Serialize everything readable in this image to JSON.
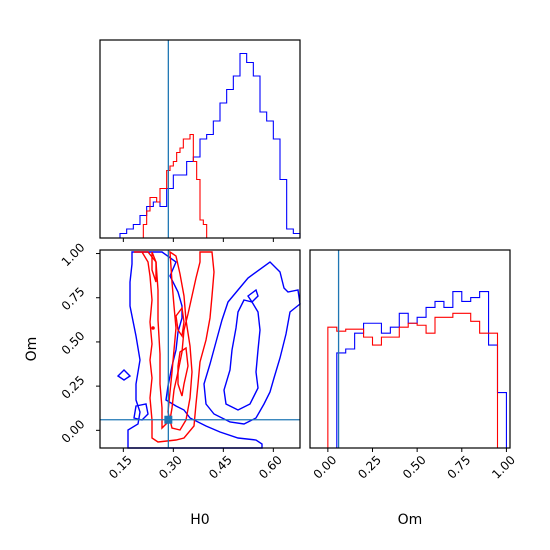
{
  "chart_data": {
    "type": "corner",
    "parameters": [
      "H0",
      "Om"
    ],
    "truths": {
      "H0": 0.285,
      "Om": 0.06
    },
    "series": [
      {
        "color": "#0000ff"
      },
      {
        "color": "#ff0000"
      }
    ],
    "truth_color": "#1f77b4",
    "panels": [
      {
        "id": "h0-marginal",
        "type": "step-histogram",
        "xlim": [
          0.08,
          0.68
        ],
        "bin_edges": [
          0.08,
          0.1,
          0.12,
          0.14,
          0.16,
          0.18,
          0.2,
          0.22,
          0.24,
          0.26,
          0.28,
          0.3,
          0.32,
          0.34,
          0.36,
          0.38,
          0.4,
          0.42,
          0.44,
          0.46,
          0.48,
          0.5,
          0.52,
          0.54,
          0.56,
          0.58,
          0.6,
          0.62,
          0.64,
          0.66,
          0.68
        ],
        "series": [
          {
            "color": "#0000ff",
            "counts": [
              0,
              0,
              0,
              0.5,
              1.0,
              1.5,
              2.5,
              3.5,
              4.0,
              3.5,
              5.5,
              7.0,
              7.0,
              8.5,
              9.0,
              11.0,
              11.5,
              13.0,
              15.0,
              16.5,
              18.0,
              20.5,
              19.5,
              18.0,
              14.0,
              13.0,
              11.0,
              6.5,
              1.0,
              0.5
            ]
          },
          {
            "color": "#ff0000",
            "counts": [
              0,
              0,
              0,
              0,
              0,
              0,
              0,
              0,
              0,
              0,
              0,
              0,
              0,
              0,
              0,
              0,
              0,
              0,
              0,
              0,
              0,
              0,
              0,
              0,
              0,
              0,
              0,
              0,
              0,
              0
            ]
          }
        ],
        "red_fine": {
          "bin_edges": [
            0.2,
            0.21,
            0.22,
            0.23,
            0.24,
            0.25,
            0.26,
            0.27,
            0.28,
            0.29,
            0.3,
            0.31,
            0.32,
            0.33,
            0.34,
            0.35,
            0.36,
            0.37,
            0.38,
            0.39,
            0.4,
            0.41
          ],
          "counts": [
            0,
            1.5,
            3.0,
            4.5,
            4.5,
            4.0,
            5.5,
            5.5,
            7.5,
            8.0,
            8.5,
            9.5,
            10.0,
            11.0,
            11.0,
            11.5,
            8.5,
            6.5,
            2.0,
            1.5,
            0
          ]
        },
        "ylim": [
          0,
          22
        ]
      },
      {
        "id": "h0-om-contour",
        "type": "contour",
        "xlim": [
          0.08,
          0.68
        ],
        "ylim": [
          -0.1,
          1.02
        ],
        "xlabel": "H0",
        "ylabel": "Om",
        "xticks": [
          "0.15",
          "0.30",
          "0.45",
          "0.60"
        ],
        "xtick_values": [
          0.15,
          0.3,
          0.45,
          0.6
        ],
        "yticks": [
          "0.00",
          "0.25",
          "0.50",
          "0.75",
          "1.00"
        ],
        "ytick_values": [
          0.0,
          0.25,
          0.5,
          0.75,
          1.0
        ]
      },
      {
        "id": "om-marginal",
        "type": "step-histogram",
        "xlim": [
          -0.1,
          1.02
        ],
        "xlabel": "Om",
        "xticks": [
          "0.00",
          "0.25",
          "0.50",
          "0.75",
          "1.00"
        ],
        "xtick_values": [
          0.0,
          0.25,
          0.5,
          0.75,
          1.0
        ],
        "bin_edges": [
          -0.05,
          0.0,
          0.05,
          0.1,
          0.15,
          0.2,
          0.25,
          0.3,
          0.35,
          0.4,
          0.45,
          0.5,
          0.55,
          0.6,
          0.65,
          0.7,
          0.75,
          0.8,
          0.85,
          0.9,
          0.95,
          1.0
        ],
        "series": [
          {
            "color": "#0000ff",
            "counts": [
              0,
              0,
              4.8,
              5.0,
              5.8,
              6.3,
              6.3,
              5.8,
              6.1,
              6.8,
              6.3,
              6.6,
              7.1,
              7.4,
              7.1,
              7.9,
              7.4,
              7.6,
              7.9,
              5.2,
              2.8
            ]
          },
          {
            "color": "#ff0000",
            "counts": [
              0,
              6.1,
              5.9,
              6.0,
              6.0,
              5.6,
              5.2,
              5.6,
              5.6,
              6.1,
              6.3,
              6.2,
              5.8,
              6.6,
              6.6,
              6.8,
              6.8,
              6.4,
              5.8,
              5.8,
              0
            ]
          }
        ],
        "ylim": [
          0,
          10
        ]
      }
    ]
  }
}
